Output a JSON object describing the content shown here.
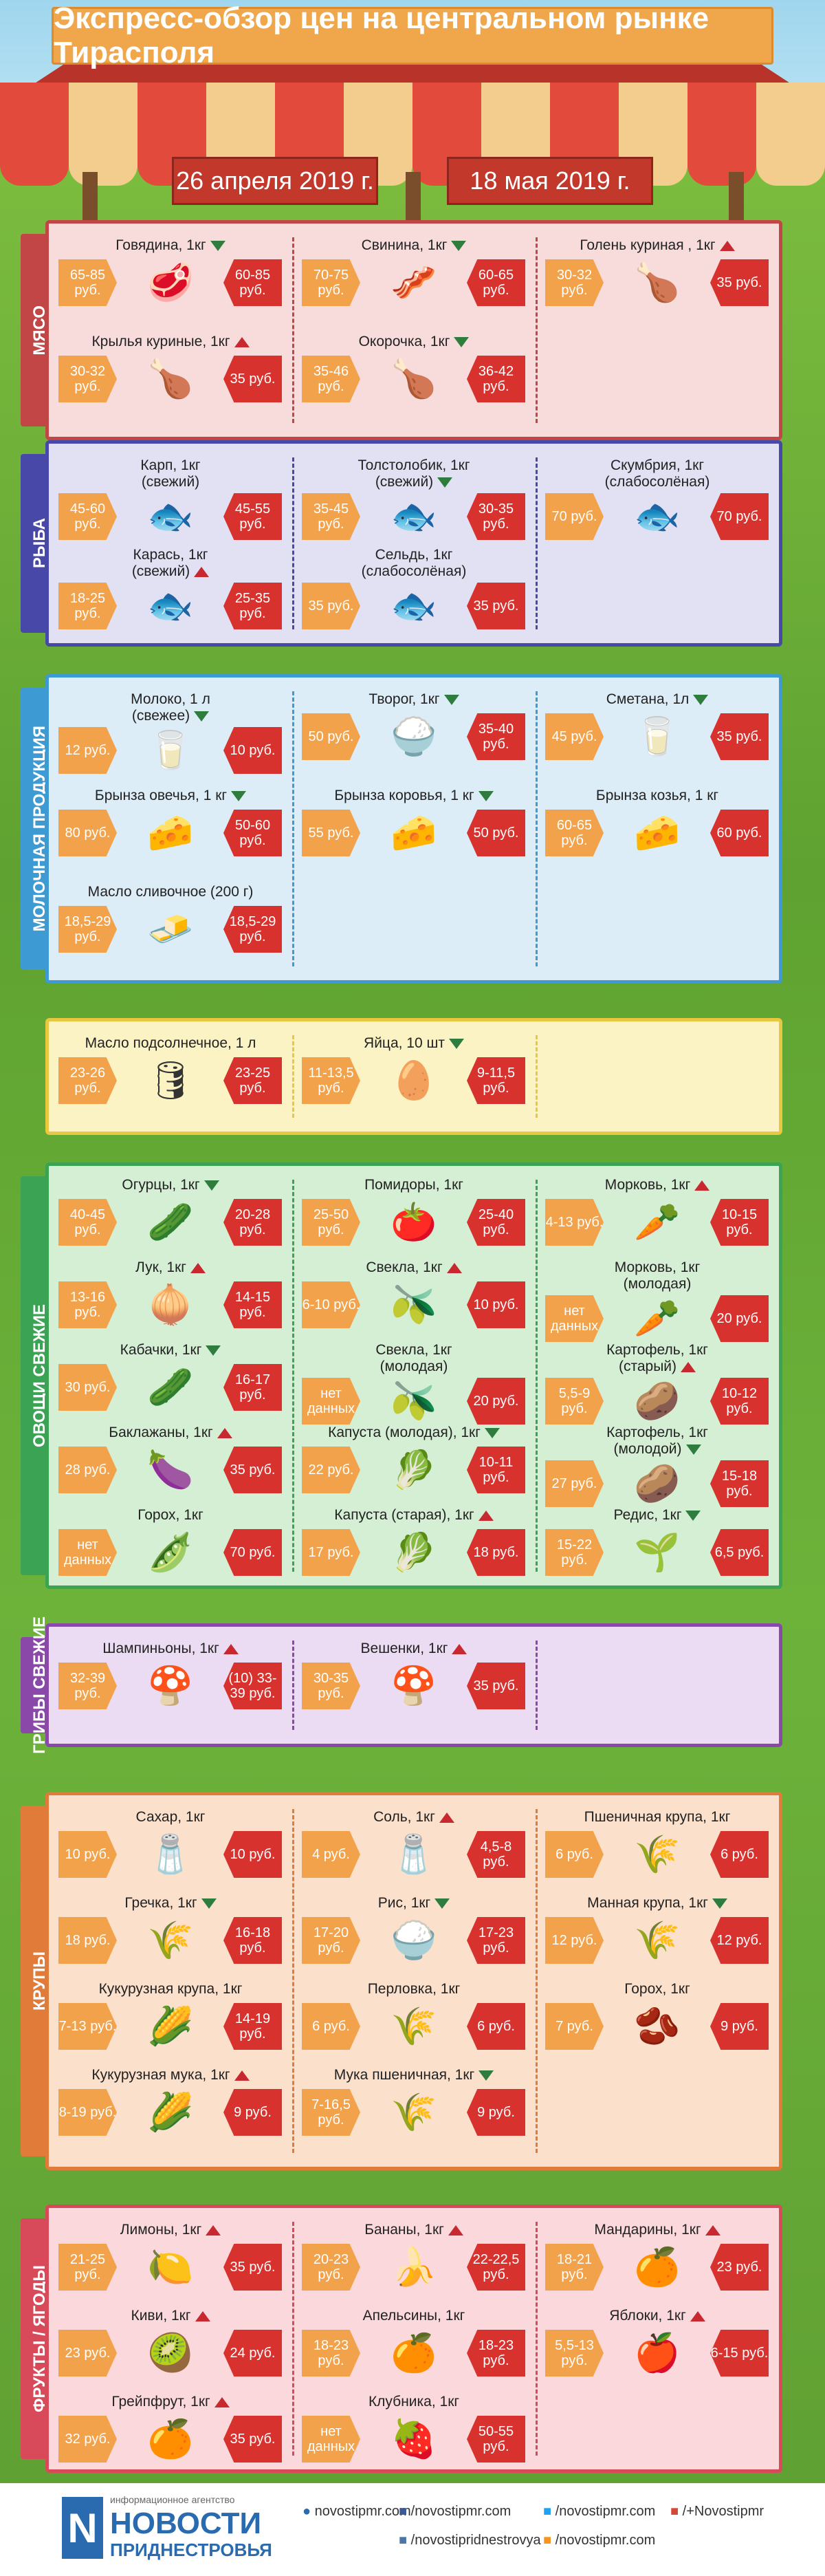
{
  "title": "Экспресс-обзор цен на центральном рынке Тирасполя",
  "date_left": "26 апреля 2019 г.",
  "date_right": "18 мая 2019 г.",
  "sections": [
    {
      "label": "МЯСО",
      "color": "#c24646",
      "bg": "#f8dcdc",
      "items": [
        {
          "name": "Говядина, 1кг",
          "trend": "down",
          "old": "65-85 руб.",
          "new": "60-85 руб.",
          "icon": "beef-icon"
        },
        {
          "name": "Свинина, 1кг",
          "trend": "down",
          "old": "70-75 руб.",
          "new": "60-65 руб.",
          "icon": "pork-icon"
        },
        {
          "name": "Голень куриная , 1кг",
          "trend": "up",
          "old": "30-32 руб.",
          "new": "35 руб.",
          "icon": "chicken-leg-icon"
        },
        {
          "name": "Крылья куриные, 1кг",
          "trend": "up",
          "old": "30-32 руб.",
          "new": "35 руб.",
          "icon": "chicken-wings-icon"
        },
        {
          "name": "Окорочка, 1кг",
          "trend": "down",
          "old": "35-46 руб.",
          "new": "36-42 руб.",
          "icon": "chicken-thigh-icon"
        }
      ]
    },
    {
      "label": "РЫБА",
      "color": "#4848a8",
      "bg": "#e2e1f4",
      "items": [
        {
          "name": "Карп, 1кг\n(свежий)",
          "trend": "",
          "old": "45-60 руб.",
          "new": "45-55 руб.",
          "icon": "carp-icon"
        },
        {
          "name": "Толстолобик, 1кг\n(свежий)",
          "trend": "down",
          "old": "35-45 руб.",
          "new": "30-35 руб.",
          "icon": "silver-carp-icon"
        },
        {
          "name": "Скумбрия, 1кг\n(слабосолёная)",
          "trend": "",
          "old": "70 руб.",
          "new": "70 руб.",
          "icon": "mackerel-icon"
        },
        {
          "name": "Карась, 1кг\n(свежий)",
          "trend": "up",
          "old": "18-25 руб.",
          "new": "25-35 руб.",
          "icon": "crucian-icon"
        },
        {
          "name": "Сельдь, 1кг\n(слабосолёная)",
          "trend": "",
          "old": "35 руб.",
          "new": "35 руб.",
          "icon": "herring-icon"
        }
      ]
    },
    {
      "label": "МОЛОЧНАЯ ПРОДУКЦИЯ",
      "color": "#3d9ad2",
      "bg": "#dcedf8",
      "items": [
        {
          "name": "Молоко, 1 л\n(свежее)",
          "trend": "down",
          "old": "12 руб.",
          "new": "10 руб.",
          "icon": "milk-icon"
        },
        {
          "name": "Творог, 1кг",
          "trend": "down",
          "old": "50 руб.",
          "new": "35-40 руб.",
          "icon": "cottage-cheese-icon"
        },
        {
          "name": "Сметана, 1л",
          "trend": "down",
          "old": "45 руб.",
          "new": "35 руб.",
          "icon": "sour-cream-icon"
        },
        {
          "name": "Брынза овечья, 1 кг",
          "trend": "down",
          "old": "80 руб.",
          "new": "50-60 руб.",
          "icon": "sheep-cheese-icon"
        },
        {
          "name": "Брынза коровья, 1 кг",
          "trend": "down",
          "old": "55 руб.",
          "new": "50 руб.",
          "icon": "cow-cheese-icon"
        },
        {
          "name": "Брынза козья, 1 кг",
          "trend": "",
          "old": "60-65 руб.",
          "new": "60 руб.",
          "icon": "goat-cheese-icon"
        },
        {
          "name": "Масло сливочное (200 г)",
          "trend": "",
          "old": "18,5-29 руб.",
          "new": "18,5-29 руб.",
          "icon": "butter-icon"
        }
      ]
    },
    {
      "label": "",
      "color": "#e8c840",
      "bg": "#fbf3c4",
      "items": [
        {
          "name": "Масло подсолнечное, 1 л",
          "trend": "",
          "old": "23-26 руб.",
          "new": "23-25 руб.",
          "icon": "sunflower-oil-icon"
        },
        {
          "name": "Яйца, 10 шт",
          "trend": "down",
          "old": "11-13,5 руб.",
          "new": "9-11,5 руб.",
          "icon": "eggs-icon"
        }
      ]
    },
    {
      "label": "ОВОЩИ СВЕЖИЕ",
      "color": "#3aa354",
      "bg": "#d5efd5",
      "items": [
        {
          "name": "Огурцы, 1кг",
          "trend": "down",
          "old": "40-45 руб.",
          "new": "20-28 руб.",
          "icon": "cucumber-icon"
        },
        {
          "name": "Помидоры, 1кг",
          "trend": "",
          "old": "25-50 руб.",
          "new": "25-40 руб.",
          "icon": "tomato-icon"
        },
        {
          "name": "Морковь, 1кг",
          "trend": "up",
          "old": "4-13 руб.",
          "new": "10-15 руб.",
          "icon": "carrot-icon"
        },
        {
          "name": "Лук, 1кг",
          "trend": "up",
          "old": "13-16 руб.",
          "new": "14-15 руб.",
          "icon": "onion-icon"
        },
        {
          "name": "Свекла, 1кг",
          "trend": "up",
          "old": "6-10 руб.",
          "new": "10 руб.",
          "icon": "beet-icon"
        },
        {
          "name": "Морковь, 1кг\n(молодая)",
          "trend": "",
          "old": "нет данных",
          "new": "20 руб.",
          "icon": "young-carrot-icon"
        },
        {
          "name": "Кабачки, 1кг",
          "trend": "down",
          "old": "30 руб.",
          "new": "16-17 руб.",
          "icon": "zucchini-icon"
        },
        {
          "name": "Свекла, 1кг\n(молодая)",
          "trend": "",
          "old": "нет данных",
          "new": "20 руб.",
          "icon": "young-beet-icon"
        },
        {
          "name": "Картофель, 1кг\n(старый)",
          "trend": "up",
          "old": "5,5-9 руб.",
          "new": "10-12 руб.",
          "icon": "potato-icon"
        },
        {
          "name": "Баклажаны, 1кг",
          "trend": "up",
          "old": "28 руб.",
          "new": "35 руб.",
          "icon": "eggplant-icon"
        },
        {
          "name": "Капуста (молодая), 1кг",
          "trend": "down",
          "old": "22 руб.",
          "new": "10-11 руб.",
          "icon": "young-cabbage-icon"
        },
        {
          "name": "Картофель, 1кг\n(молодой)",
          "trend": "down",
          "old": "27 руб.",
          "new": "15-18 руб.",
          "icon": "young-potato-icon"
        },
        {
          "name": "Горох, 1кг",
          "trend": "",
          "old": "нет данных",
          "new": "70 руб.",
          "icon": "peas-icon"
        },
        {
          "name": "Капуста (старая), 1кг",
          "trend": "up",
          "old": "17 руб.",
          "new": "18 руб.",
          "icon": "cabbage-icon"
        },
        {
          "name": "Редис, 1кг",
          "trend": "down",
          "old": "15-22 руб.",
          "new": "6,5 руб.",
          "icon": "radish-icon"
        }
      ]
    },
    {
      "label": "ГРИБЫ СВЕЖИЕ",
      "color": "#8a48a8",
      "bg": "#ecdcf3",
      "items": [
        {
          "name": "Шампиньоны, 1кг",
          "trend": "up",
          "old": "32-39 руб.",
          "new": "(10) 33-39 руб.",
          "icon": "champignon-icon"
        },
        {
          "name": "Вешенки, 1кг",
          "trend": "up",
          "old": "30-35 руб.",
          "new": "35 руб.",
          "icon": "oyster-mushroom-icon"
        }
      ]
    },
    {
      "label": "КРУПЫ",
      "color": "#e07b3a",
      "bg": "#fbe0cc",
      "items": [
        {
          "name": "Сахар, 1кг",
          "trend": "",
          "old": "10 руб.",
          "new": "10 руб.",
          "icon": "sugar-icon"
        },
        {
          "name": "Соль, 1кг",
          "trend": "up",
          "old": "4 руб.",
          "new": "4,5-8 руб.",
          "icon": "salt-icon"
        },
        {
          "name": "Пшеничная крупа, 1кг",
          "trend": "",
          "old": "6 руб.",
          "new": "6 руб.",
          "icon": "wheat-groats-icon"
        },
        {
          "name": "Гречка, 1кг",
          "trend": "down",
          "old": "18 руб.",
          "new": "16-18 руб.",
          "icon": "buckwheat-icon"
        },
        {
          "name": "Рис, 1кг",
          "trend": "down",
          "old": "17-20 руб.",
          "new": "17-23 руб.",
          "icon": "rice-icon"
        },
        {
          "name": "Манная крупа, 1кг",
          "trend": "down",
          "old": "12 руб.",
          "new": "12 руб.",
          "icon": "semolina-icon"
        },
        {
          "name": "Кукурузная крупа, 1кг",
          "trend": "",
          "old": "7-13 руб.",
          "new": "14-19 руб.",
          "icon": "corn-groats-icon"
        },
        {
          "name": "Перловка, 1кг",
          "trend": "",
          "old": "6 руб.",
          "new": "6 руб.",
          "icon": "barley-icon"
        },
        {
          "name": "Горох, 1кг",
          "trend": "",
          "old": "7 руб.",
          "new": "9 руб.",
          "icon": "dry-peas-icon"
        },
        {
          "name": "Кукурузная мука, 1кг",
          "trend": "up",
          "old": "8-19 руб.",
          "new": "9 руб.",
          "icon": "corn-flour-icon"
        },
        {
          "name": "Мука пшеничная, 1кг",
          "trend": "down",
          "old": "7-16,5 руб.",
          "new": "9 руб.",
          "icon": "wheat-flour-icon"
        }
      ]
    },
    {
      "label": "ФРУКТЫ / ЯГОДЫ",
      "color": "#d84a5a",
      "bg": "#fbd8dc",
      "items": [
        {
          "name": "Лимоны, 1кг",
          "trend": "up",
          "old": "21-25 руб.",
          "new": "35 руб.",
          "icon": "lemon-icon"
        },
        {
          "name": "Бананы, 1кг",
          "trend": "up",
          "old": "20-23 руб.",
          "new": "22-22,5 руб.",
          "icon": "banana-icon"
        },
        {
          "name": "Мандарины, 1кг",
          "trend": "up",
          "old": "18-21 руб.",
          "new": "23 руб.",
          "icon": "tangerine-icon"
        },
        {
          "name": "Киви, 1кг",
          "trend": "up",
          "old": "23 руб.",
          "new": "24 руб.",
          "icon": "kiwi-icon"
        },
        {
          "name": "Апельсины, 1кг",
          "trend": "",
          "old": "18-23 руб.",
          "new": "18-23 руб.",
          "icon": "orange-icon"
        },
        {
          "name": "Яблоки, 1кг",
          "trend": "up",
          "old": "5,5-13 руб.",
          "new": "6-15 руб.",
          "icon": "apple-icon"
        },
        {
          "name": "Грейпфрут, 1кг",
          "trend": "up",
          "old": "32 руб.",
          "new": "35 руб.",
          "icon": "grapefruit-icon"
        },
        {
          "name": "Клубника, 1кг",
          "trend": "",
          "old": "нет данных",
          "new": "50-55 руб.",
          "icon": "strawberry-icon"
        }
      ]
    }
  ],
  "footer": {
    "agency": "информационное агентство",
    "brand1": "НОВОСТИ",
    "brand2": "ПРИДНЕСТРОВЬЯ",
    "site": "novostipmr.com",
    "fb": "/novostipmr.com",
    "vk": "/novostipridnestrovya",
    "tw": "/novostipmr.com",
    "gp": "/+Novostipmr",
    "ok": "/novostipmr.com"
  }
}
